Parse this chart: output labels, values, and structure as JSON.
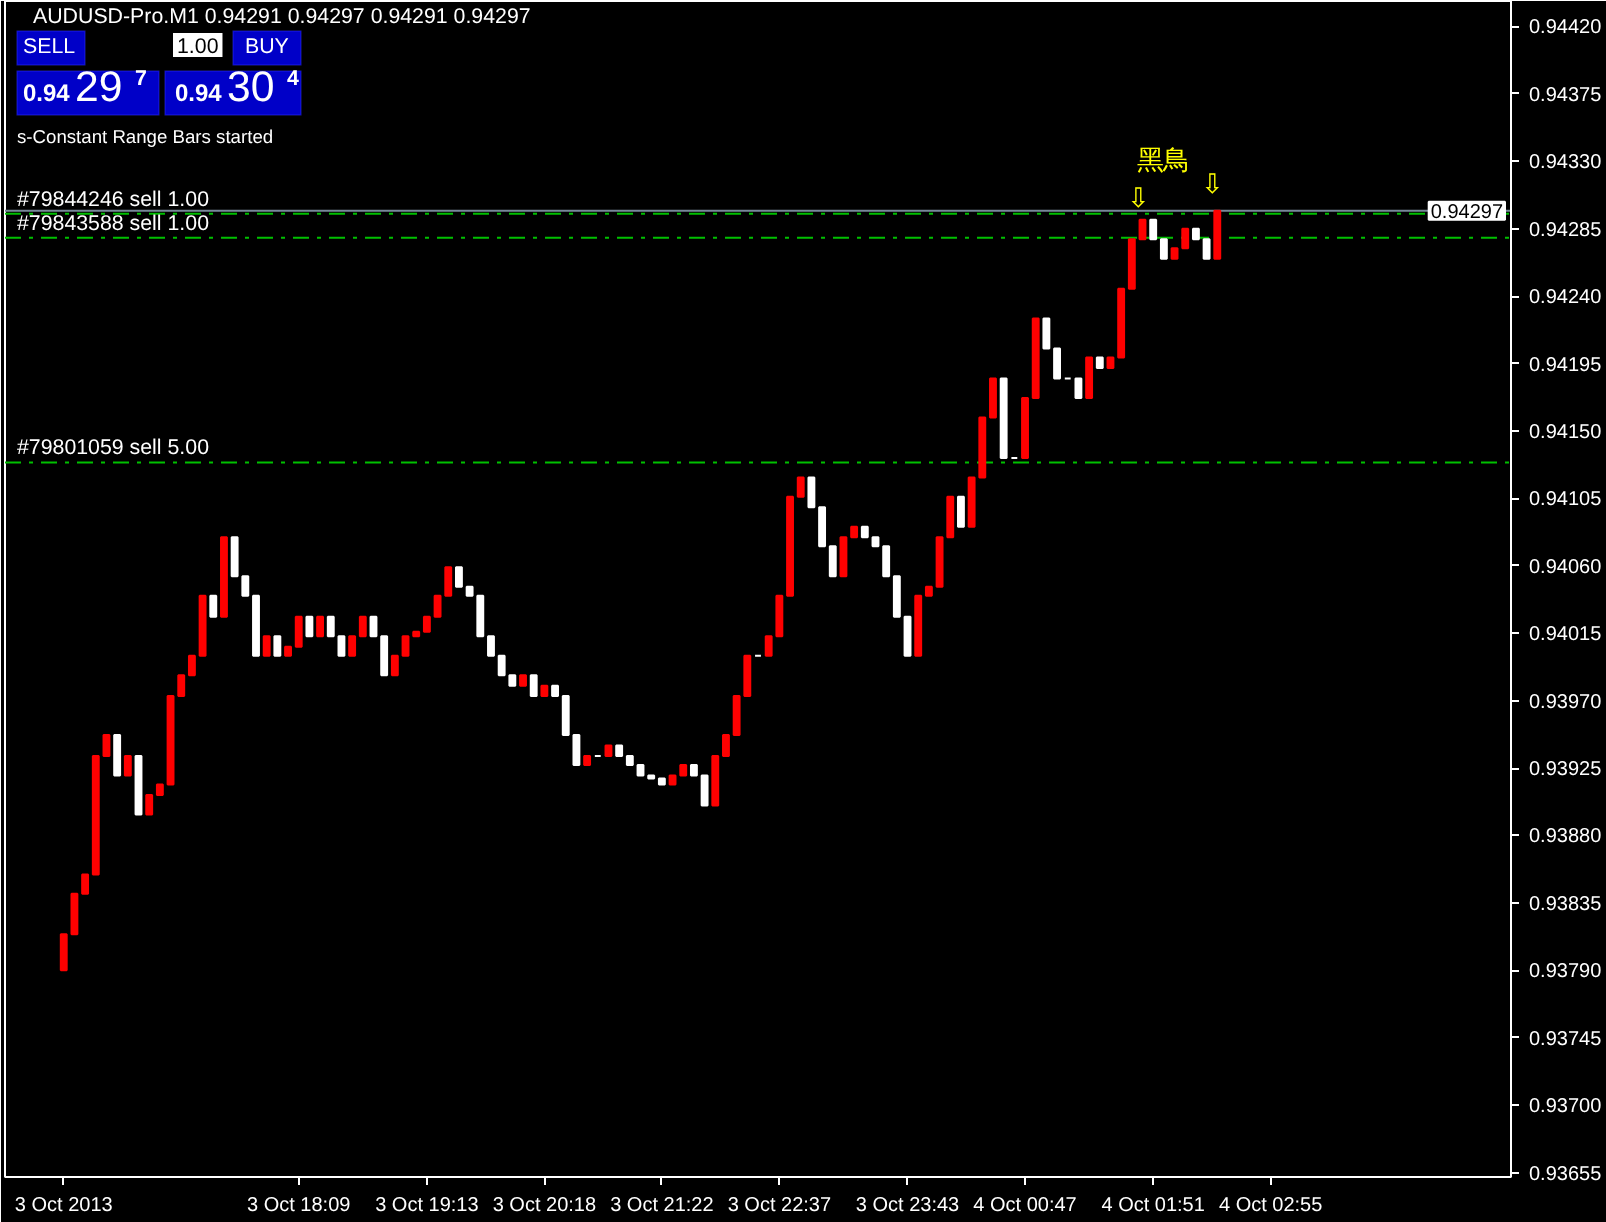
{
  "chart_data": {
    "type": "candlestick",
    "categories": [
      "3 Oct 2013",
      null,
      null,
      null,
      null,
      null,
      null,
      null,
      null,
      null,
      null,
      null,
      null,
      null,
      null,
      null,
      null,
      null,
      null,
      null,
      null,
      null,
      "3 Oct 18:09",
      null,
      null,
      null,
      null,
      null,
      null,
      null,
      null,
      null,
      null,
      null,
      "3 Oct 19:13",
      null,
      null,
      null,
      null,
      null,
      null,
      null,
      null,
      null,
      null,
      "3 Oct 20:18",
      null,
      null,
      null,
      null,
      null,
      null,
      null,
      null,
      null,
      null,
      "3 Oct 21:22",
      null,
      null,
      null,
      null,
      null,
      null,
      null,
      null,
      null,
      null,
      "3 Oct 22:37",
      null,
      null,
      null,
      null,
      null,
      null,
      null,
      null,
      null,
      null,
      null,
      "3 Oct 23:43",
      null,
      null,
      null,
      null,
      null,
      null,
      null,
      null,
      null,
      null,
      "4 Oct 00:47",
      null,
      null,
      null,
      null,
      null,
      null,
      null,
      null,
      null,
      null,
      null,
      "4 Oct 01:51",
      null,
      null,
      null,
      null,
      null,
      null,
      null,
      null,
      null,
      null,
      "4 Oct 02:55",
      null,
      null,
      null,
      null,
      null,
      null,
      null,
      null,
      null,
      null,
      null,
      null,
      null,
      null,
      null,
      null,
      null,
      null,
      null,
      null,
      null,
      null
    ],
    "ohlc": [
      [
        0.9379,
        0.93814,
        0.9379,
        0.93814
      ],
      [
        0.93814,
        0.93841,
        0.93814,
        0.93841
      ],
      [
        0.93841,
        0.93854,
        0.93841,
        0.93854
      ],
      [
        0.93854,
        0.93933,
        0.93854,
        0.93933
      ],
      [
        0.93933,
        0.93947,
        0.93933,
        0.93947
      ],
      [
        0.93947,
        0.93947,
        0.9392,
        0.9392
      ],
      [
        0.9392,
        0.93933,
        0.9392,
        0.93933
      ],
      [
        0.93933,
        0.93933,
        0.93894,
        0.93894
      ],
      [
        0.93894,
        0.93907,
        0.93894,
        0.93907
      ],
      [
        0.93907,
        0.93914,
        0.93907,
        0.93914
      ],
      [
        0.93914,
        0.93973,
        0.93914,
        0.93973
      ],
      [
        0.93973,
        0.93987,
        0.93973,
        0.93987
      ],
      [
        0.93987,
        0.94,
        0.93987,
        0.94
      ],
      [
        0.94,
        0.9404,
        0.94,
        0.9404
      ],
      [
        0.9404,
        0.9404,
        0.94026,
        0.94026
      ],
      [
        0.94026,
        0.94079,
        0.94026,
        0.94079
      ],
      [
        0.94079,
        0.94079,
        0.94053,
        0.94053
      ],
      [
        0.94053,
        0.94053,
        0.9404,
        0.9404
      ],
      [
        0.9404,
        0.9404,
        0.94,
        0.94
      ],
      [
        0.94,
        0.94013,
        0.94,
        0.94013
      ],
      [
        0.94013,
        0.94013,
        0.94,
        0.94
      ],
      [
        0.94,
        0.94006,
        0.94,
        0.94006
      ],
      [
        0.94006,
        0.94026,
        0.94006,
        0.94026
      ],
      [
        0.94026,
        0.94026,
        0.94013,
        0.94013
      ],
      [
        0.94013,
        0.94026,
        0.94013,
        0.94026
      ],
      [
        0.94026,
        0.94026,
        0.94013,
        0.94013
      ],
      [
        0.94013,
        0.94013,
        0.94,
        0.94
      ],
      [
        0.94,
        0.94013,
        0.94,
        0.94013
      ],
      [
        0.94013,
        0.94026,
        0.94013,
        0.94026
      ],
      [
        0.94026,
        0.94026,
        0.94013,
        0.94013
      ],
      [
        0.94013,
        0.94013,
        0.93987,
        0.93987
      ],
      [
        0.93987,
        0.94,
        0.93987,
        0.94
      ],
      [
        0.94,
        0.94013,
        0.94,
        0.94013
      ],
      [
        0.94013,
        0.94016,
        0.94013,
        0.94016
      ],
      [
        0.94016,
        0.94026,
        0.94016,
        0.94026
      ],
      [
        0.94026,
        0.9404,
        0.94026,
        0.9404
      ],
      [
        0.9404,
        0.94059,
        0.9404,
        0.94059
      ],
      [
        0.94059,
        0.94059,
        0.94046,
        0.94046
      ],
      [
        0.94046,
        0.94046,
        0.9404,
        0.9404
      ],
      [
        0.9404,
        0.9404,
        0.94013,
        0.94013
      ],
      [
        0.94013,
        0.94013,
        0.94,
        0.94
      ],
      [
        0.94,
        0.94,
        0.93987,
        0.93987
      ],
      [
        0.93987,
        0.93987,
        0.9398,
        0.9398
      ],
      [
        0.9398,
        0.93987,
        0.9398,
        0.93987
      ],
      [
        0.93987,
        0.93987,
        0.93973,
        0.93973
      ],
      [
        0.93973,
        0.9398,
        0.93973,
        0.9398
      ],
      [
        0.9398,
        0.9398,
        0.93973,
        0.93973
      ],
      [
        0.93973,
        0.93973,
        0.93947,
        0.93947
      ],
      [
        0.93947,
        0.93947,
        0.93927,
        0.93927
      ],
      [
        0.93927,
        0.93933,
        0.93927,
        0.93933
      ],
      [
        0.93933,
        0.93933,
        0.93933,
        0.93933
      ],
      [
        0.93933,
        0.9394,
        0.93933,
        0.9394
      ],
      [
        0.9394,
        0.9394,
        0.93933,
        0.93933
      ],
      [
        0.93933,
        0.93933,
        0.93927,
        0.93927
      ],
      [
        0.93927,
        0.93927,
        0.9392,
        0.9392
      ],
      [
        0.9392,
        0.9392,
        0.93918,
        0.93918
      ],
      [
        0.93918,
        0.93918,
        0.93914,
        0.93914
      ],
      [
        0.93914,
        0.9392,
        0.93914,
        0.9392
      ],
      [
        0.9392,
        0.93927,
        0.9392,
        0.93927
      ],
      [
        0.93927,
        0.93927,
        0.9392,
        0.9392
      ],
      [
        0.9392,
        0.9392,
        0.939,
        0.939
      ],
      [
        0.939,
        0.93933,
        0.939,
        0.93933
      ],
      [
        0.93933,
        0.93947,
        0.93933,
        0.93947
      ],
      [
        0.93947,
        0.93973,
        0.93947,
        0.93973
      ],
      [
        0.93973,
        0.94,
        0.93973,
        0.94
      ],
      [
        0.94,
        0.94,
        0.94,
        0.94
      ],
      [
        0.94,
        0.94013,
        0.94,
        0.94013
      ],
      [
        0.94013,
        0.9404,
        0.94013,
        0.9404
      ],
      [
        0.9404,
        0.94106,
        0.9404,
        0.94106
      ],
      [
        0.94106,
        0.94119,
        0.94106,
        0.94119
      ],
      [
        0.94119,
        0.94119,
        0.94099,
        0.94099
      ],
      [
        0.94099,
        0.94099,
        0.94073,
        0.94073
      ],
      [
        0.94073,
        0.94073,
        0.94053,
        0.94053
      ],
      [
        0.94053,
        0.94079,
        0.94053,
        0.94079
      ],
      [
        0.94079,
        0.94086,
        0.94079,
        0.94086
      ],
      [
        0.94086,
        0.94086,
        0.94079,
        0.94079
      ],
      [
        0.94079,
        0.94079,
        0.94073,
        0.94073
      ],
      [
        0.94073,
        0.94073,
        0.94053,
        0.94053
      ],
      [
        0.94053,
        0.94053,
        0.94026,
        0.94026
      ],
      [
        0.94026,
        0.94026,
        0.94,
        0.94
      ],
      [
        0.94,
        0.9404,
        0.94,
        0.9404
      ],
      [
        0.9404,
        0.94046,
        0.9404,
        0.94046
      ],
      [
        0.94046,
        0.94079,
        0.94046,
        0.94079
      ],
      [
        0.94079,
        0.94106,
        0.94079,
        0.94106
      ],
      [
        0.94106,
        0.94106,
        0.94086,
        0.94086
      ],
      [
        0.94086,
        0.94119,
        0.94086,
        0.94119
      ],
      [
        0.94119,
        0.94159,
        0.94119,
        0.94159
      ],
      [
        0.94159,
        0.94185,
        0.94159,
        0.94185
      ],
      [
        0.94185,
        0.94185,
        0.94132,
        0.94132
      ],
      [
        0.94132,
        0.94132,
        0.94132,
        0.94132
      ],
      [
        0.94132,
        0.94172,
        0.94132,
        0.94172
      ],
      [
        0.94172,
        0.94225,
        0.94172,
        0.94225
      ],
      [
        0.94225,
        0.94225,
        0.94205,
        0.94205
      ],
      [
        0.94205,
        0.94205,
        0.94185,
        0.94185
      ],
      [
        0.94185,
        0.94185,
        0.94185,
        0.94185
      ],
      [
        0.94185,
        0.94185,
        0.94172,
        0.94172
      ],
      [
        0.94172,
        0.94199,
        0.94172,
        0.94199
      ],
      [
        0.94199,
        0.94199,
        0.94192,
        0.94192
      ],
      [
        0.94192,
        0.94199,
        0.94192,
        0.94199
      ],
      [
        0.94199,
        0.94245,
        0.94199,
        0.94245
      ],
      [
        0.94245,
        0.94278,
        0.94245,
        0.94278
      ],
      [
        0.94278,
        0.94291,
        0.94278,
        0.94291
      ],
      [
        0.94291,
        0.94291,
        0.94278,
        0.94278
      ],
      [
        0.94278,
        0.94278,
        0.94265,
        0.94265
      ],
      [
        0.94265,
        0.94272,
        0.94265,
        0.94272
      ],
      [
        0.94272,
        0.94285,
        0.94272,
        0.94285
      ],
      [
        0.94285,
        0.94285,
        0.94278,
        0.94278
      ],
      [
        0.94278,
        0.94278,
        0.94265,
        0.94265
      ],
      [
        0.94265,
        0.94297,
        0.94265,
        0.94297
      ],
      null,
      null,
      null,
      null,
      null,
      null,
      null,
      null,
      null,
      null,
      null,
      null,
      null,
      null,
      null,
      null,
      null,
      null,
      null,
      null,
      null,
      null,
      null,
      null,
      null,
      null,
      null
    ],
    "colors": [
      "#ff0000",
      "#ff0000",
      "#ff0000",
      "#ff0000",
      "#ff0000",
      "#ffffff",
      "#ff0000",
      "#ffffff",
      "#ff0000",
      "#ff0000",
      "#ff0000",
      "#ff0000",
      "#ff0000",
      "#ff0000",
      "#ffffff",
      "#ff0000",
      "#ffffff",
      "#ffffff",
      "#ffffff",
      "#ff0000",
      "#ffffff",
      "#ff0000",
      "#ff0000",
      "#ffffff",
      "#ff0000",
      "#ffffff",
      "#ffffff",
      "#ff0000",
      "#ff0000",
      "#ffffff",
      "#ffffff",
      "#ff0000",
      "#ff0000",
      "#ff0000",
      "#ff0000",
      "#ff0000",
      "#ff0000",
      "#ffffff",
      "#ffffff",
      "#ffffff",
      "#ffffff",
      "#ffffff",
      "#ffffff",
      "#ff0000",
      "#ffffff",
      "#ff0000",
      "#ffffff",
      "#ffffff",
      "#ffffff",
      "#ff0000",
      "#ffffff",
      "#ff0000",
      "#ffffff",
      "#ffffff",
      "#ffffff",
      "#ffffff",
      "#ffffff",
      "#ff0000",
      "#ff0000",
      "#ffffff",
      "#ffffff",
      "#ff0000",
      "#ff0000",
      "#ff0000",
      "#ff0000",
      "#ffffff",
      "#ff0000",
      "#ff0000",
      "#ff0000",
      "#ff0000",
      "#ffffff",
      "#ffffff",
      "#ffffff",
      "#ff0000",
      "#ff0000",
      "#ffffff",
      "#ffffff",
      "#ffffff",
      "#ffffff",
      "#ffffff",
      "#ff0000",
      "#ff0000",
      "#ff0000",
      "#ff0000",
      "#ffffff",
      "#ff0000",
      "#ff0000",
      "#ff0000",
      "#ffffff",
      "#ffffff",
      "#ff0000",
      "#ff0000",
      "#ffffff",
      "#ffffff",
      "#ffffff",
      "#ffffff",
      "#ff0000",
      "#ffffff",
      "#ff0000",
      "#ff0000",
      "#ff0000",
      "#ff0000",
      "#ffffff",
      "#ffffff",
      "#ff0000",
      "#ff0000",
      "#ffffff",
      "#ffffff",
      "#ff0000",
      null,
      null,
      null,
      null,
      null,
      null,
      null,
      null,
      null,
      null,
      null,
      null,
      null,
      null,
      null,
      null,
      null,
      null,
      null,
      null,
      null,
      null,
      null,
      null,
      null,
      null,
      null
    ],
    "ylim": [
      0.93652,
      0.94437
    ],
    "yticks": [
      {
        "value": 0.93655,
        "label": "0.93655"
      },
      {
        "value": 0.937,
        "label": "0.93700"
      },
      {
        "value": 0.93745,
        "label": "0.93745"
      },
      {
        "value": 0.9379,
        "label": "0.93790"
      },
      {
        "value": 0.93835,
        "label": "0.93835"
      },
      {
        "value": 0.9388,
        "label": "0.93880"
      },
      {
        "value": 0.93925,
        "label": "0.93925"
      },
      {
        "value": 0.9397,
        "label": "0.93970"
      },
      {
        "value": 0.94015,
        "label": "0.94015"
      },
      {
        "value": 0.9406,
        "label": "0.94060"
      },
      {
        "value": 0.94105,
        "label": "0.94105"
      },
      {
        "value": 0.9415,
        "label": "0.94150"
      },
      {
        "value": 0.94195,
        "label": "0.94195"
      },
      {
        "value": 0.9424,
        "label": "0.94240"
      },
      {
        "value": 0.94285,
        "label": "0.94285"
      },
      {
        "value": 0.9433,
        "label": "0.94330"
      },
      {
        "value": 0.94375,
        "label": "0.94375"
      },
      {
        "value": 0.9442,
        "label": "0.94420"
      }
    ],
    "grid": false,
    "ref_lines": [
      {
        "axis": "y",
        "value": 0.94297,
        "label": "0.94297",
        "color": "#778899",
        "line_style": "solid"
      },
      {
        "axis": "y",
        "value": 0.94295,
        "label": "#79844246 sell 1.00",
        "color": "#00c000",
        "line_style": "dashed"
      },
      {
        "axis": "y",
        "value": 0.94279,
        "label": "#79843588 sell 1.00",
        "color": "#00c000",
        "line_style": "dashed"
      },
      {
        "axis": "y",
        "value": 0.94129,
        "label": "#79801059 sell 5.00",
        "color": "#00c000",
        "line_style": "dashed"
      }
    ],
    "annotations": [
      "AUDUSD-Pro.M1  0.94291 0.94297 0.94291 0.94297",
      "SELL",
      "1.00",
      "BUY",
      "0.94",
      "29",
      "7",
      "0.94",
      "30",
      "4",
      "s-Constant Range Bars started",
      "黑鳥",
      "⇩",
      "⇩"
    ]
  }
}
